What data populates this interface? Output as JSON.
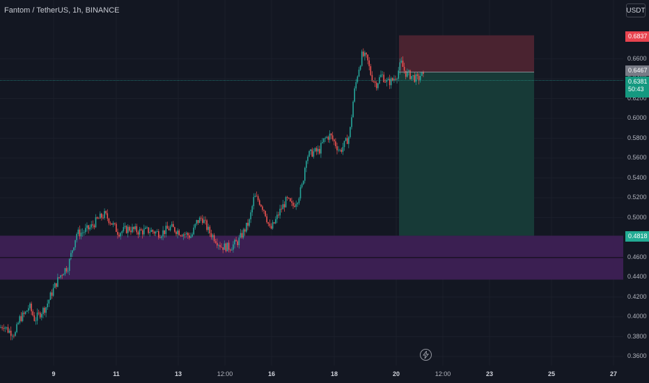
{
  "header": {
    "symbol_title": "Fantom / TetherUS, 1h, BINANCE",
    "currency_button": "USDT"
  },
  "price_axis": {
    "labels": [
      "0.6600",
      "0.6400",
      "0.6200",
      "0.6000",
      "0.5800",
      "0.5600",
      "0.5400",
      "0.5200",
      "0.5000",
      "0.4600",
      "0.4400",
      "0.4200",
      "0.4000",
      "0.3800",
      "0.3600"
    ]
  },
  "time_axis": {
    "labels": [
      "9",
      "11",
      "13",
      "12:00",
      "16",
      "18",
      "20",
      "12:00",
      "23",
      "25",
      "27"
    ]
  },
  "price_badges": {
    "stop": "0.6837",
    "entry": "0.6467",
    "last_price": "0.6381",
    "countdown": "50:43",
    "zone": "0.4818"
  },
  "colors": {
    "background": "#131722",
    "up": "#26a69a",
    "down": "#ef5350",
    "stop_zone": "#4a2330",
    "target_zone": "#173a37",
    "support_zone": "#3b1f52"
  },
  "chart_data": {
    "type": "candlestick",
    "timeframe": "1h",
    "ylim": [
      0.355,
      0.69
    ],
    "y_ticks": [
      0.36,
      0.38,
      0.4,
      0.42,
      0.44,
      0.46,
      0.48,
      0.5,
      0.52,
      0.54,
      0.56,
      0.58,
      0.6,
      0.62,
      0.64,
      0.66
    ],
    "price_path": [
      [
        0,
        0.389
      ],
      [
        5,
        0.392
      ],
      [
        12,
        0.386
      ],
      [
        22,
        0.383
      ],
      [
        28,
        0.398
      ],
      [
        36,
        0.403
      ],
      [
        42,
        0.411
      ],
      [
        50,
        0.397
      ],
      [
        58,
        0.404
      ],
      [
        66,
        0.41
      ],
      [
        73,
        0.422
      ],
      [
        80,
        0.433
      ],
      [
        86,
        0.441
      ],
      [
        92,
        0.447
      ],
      [
        98,
        0.451
      ],
      [
        103,
        0.466
      ],
      [
        110,
        0.484
      ],
      [
        118,
        0.485
      ],
      [
        130,
        0.49
      ],
      [
        140,
        0.498
      ],
      [
        150,
        0.503
      ],
      [
        158,
        0.497
      ],
      [
        170,
        0.485
      ],
      [
        185,
        0.489
      ],
      [
        200,
        0.486
      ],
      [
        215,
        0.487
      ],
      [
        230,
        0.484
      ],
      [
        245,
        0.49
      ],
      [
        260,
        0.485
      ],
      [
        275,
        0.481
      ],
      [
        282,
        0.495
      ],
      [
        290,
        0.5
      ],
      [
        300,
        0.486
      ],
      [
        310,
        0.478
      ],
      [
        318,
        0.471
      ],
      [
        330,
        0.47
      ],
      [
        342,
        0.476
      ],
      [
        350,
        0.486
      ],
      [
        358,
        0.496
      ],
      [
        365,
        0.521
      ],
      [
        372,
        0.517
      ],
      [
        380,
        0.507
      ],
      [
        388,
        0.487
      ],
      [
        395,
        0.496
      ],
      [
        403,
        0.508
      ],
      [
        412,
        0.518
      ],
      [
        420,
        0.511
      ],
      [
        428,
        0.52
      ],
      [
        434,
        0.532
      ],
      [
        440,
        0.562
      ],
      [
        450,
        0.566
      ],
      [
        458,
        0.567
      ],
      [
        466,
        0.579
      ],
      [
        474,
        0.583
      ],
      [
        480,
        0.576
      ],
      [
        488,
        0.567
      ],
      [
        496,
        0.575
      ],
      [
        502,
        0.583
      ],
      [
        508,
        0.623
      ],
      [
        514,
        0.647
      ],
      [
        520,
        0.664
      ],
      [
        527,
        0.66
      ],
      [
        533,
        0.643
      ],
      [
        540,
        0.634
      ],
      [
        548,
        0.644
      ],
      [
        556,
        0.636
      ],
      [
        563,
        0.638
      ],
      [
        570,
        0.644
      ],
      [
        576,
        0.656
      ],
      [
        582,
        0.646
      ],
      [
        590,
        0.643
      ],
      [
        600,
        0.639
      ],
      [
        605,
        0.645
      ],
      [
        610,
        0.638
      ]
    ],
    "long_position": {
      "entry": 0.6467,
      "stop": 0.6837,
      "target": 0.4818
    },
    "support_zone": [
      0.4375,
      0.4818
    ],
    "support_line": 0.4597,
    "last_price": 0.6381
  }
}
